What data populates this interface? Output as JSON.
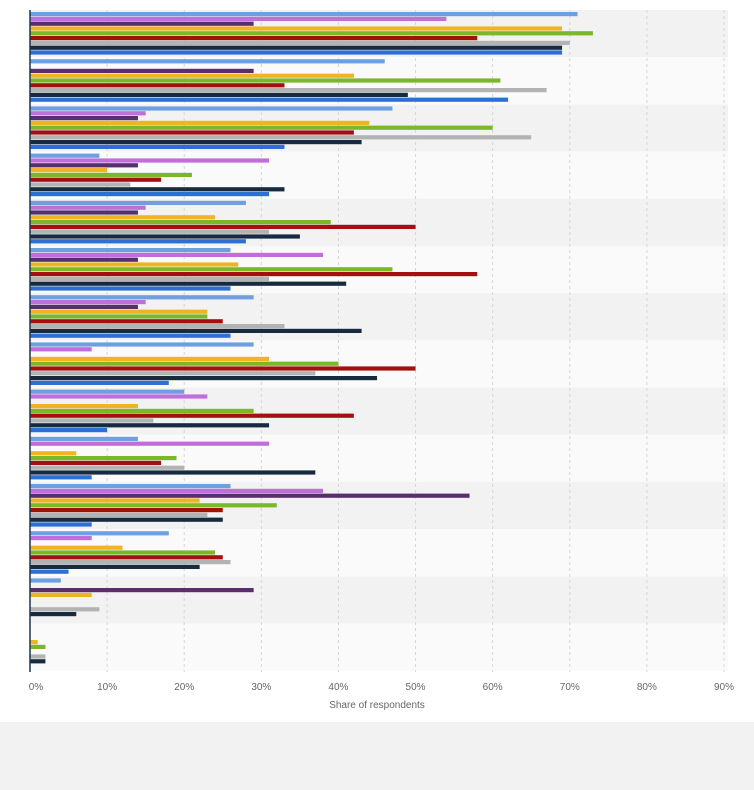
{
  "chart_data": {
    "type": "bar",
    "orientation": "horizontal",
    "title": "",
    "xlabel": "Share of respondents",
    "ylabel": "",
    "xlim": [
      0,
      90
    ],
    "x_ticks": [
      0,
      10,
      20,
      30,
      40,
      50,
      60,
      70,
      80,
      90
    ],
    "x_tick_labels": [
      "0%",
      "10%",
      "20%",
      "30%",
      "40%",
      "50%",
      "60%",
      "70%",
      "80%",
      "90%"
    ],
    "grid": "vertical-dashed",
    "legend": "none",
    "category_count": 14,
    "series_colors": [
      "#6f9fe0",
      "#c06fd8",
      "#5a2d6e",
      "#f0b323",
      "#7ab828",
      "#a50f0f",
      "#b3b3b3",
      "#162a40",
      "#2d6fd3"
    ],
    "categories_values": [
      [
        71,
        54,
        29,
        69,
        73,
        58,
        70,
        69,
        69
      ],
      [
        46,
        null,
        29,
        42,
        61,
        33,
        67,
        49,
        62
      ],
      [
        47,
        15,
        14,
        44,
        60,
        42,
        65,
        43,
        33
      ],
      [
        9,
        31,
        14,
        10,
        21,
        17,
        13,
        33,
        31
      ],
      [
        28,
        15,
        14,
        24,
        39,
        50,
        31,
        35,
        28
      ],
      [
        26,
        38,
        14,
        27,
        47,
        58,
        31,
        41,
        26
      ],
      [
        29,
        15,
        14,
        23,
        23,
        25,
        33,
        43,
        26
      ],
      [
        29,
        8,
        null,
        31,
        40,
        50,
        37,
        45,
        18
      ],
      [
        20,
        23,
        null,
        14,
        29,
        42,
        16,
        31,
        10
      ],
      [
        14,
        31,
        null,
        6,
        19,
        17,
        20,
        37,
        8
      ],
      [
        26,
        38,
        57,
        22,
        32,
        25,
        23,
        25,
        8
      ],
      [
        18,
        8,
        null,
        12,
        24,
        25,
        26,
        22,
        5
      ],
      [
        4,
        null,
        29,
        8,
        null,
        null,
        9,
        6,
        null
      ],
      [
        null,
        null,
        null,
        1,
        2,
        null,
        2,
        2,
        null
      ]
    ]
  }
}
